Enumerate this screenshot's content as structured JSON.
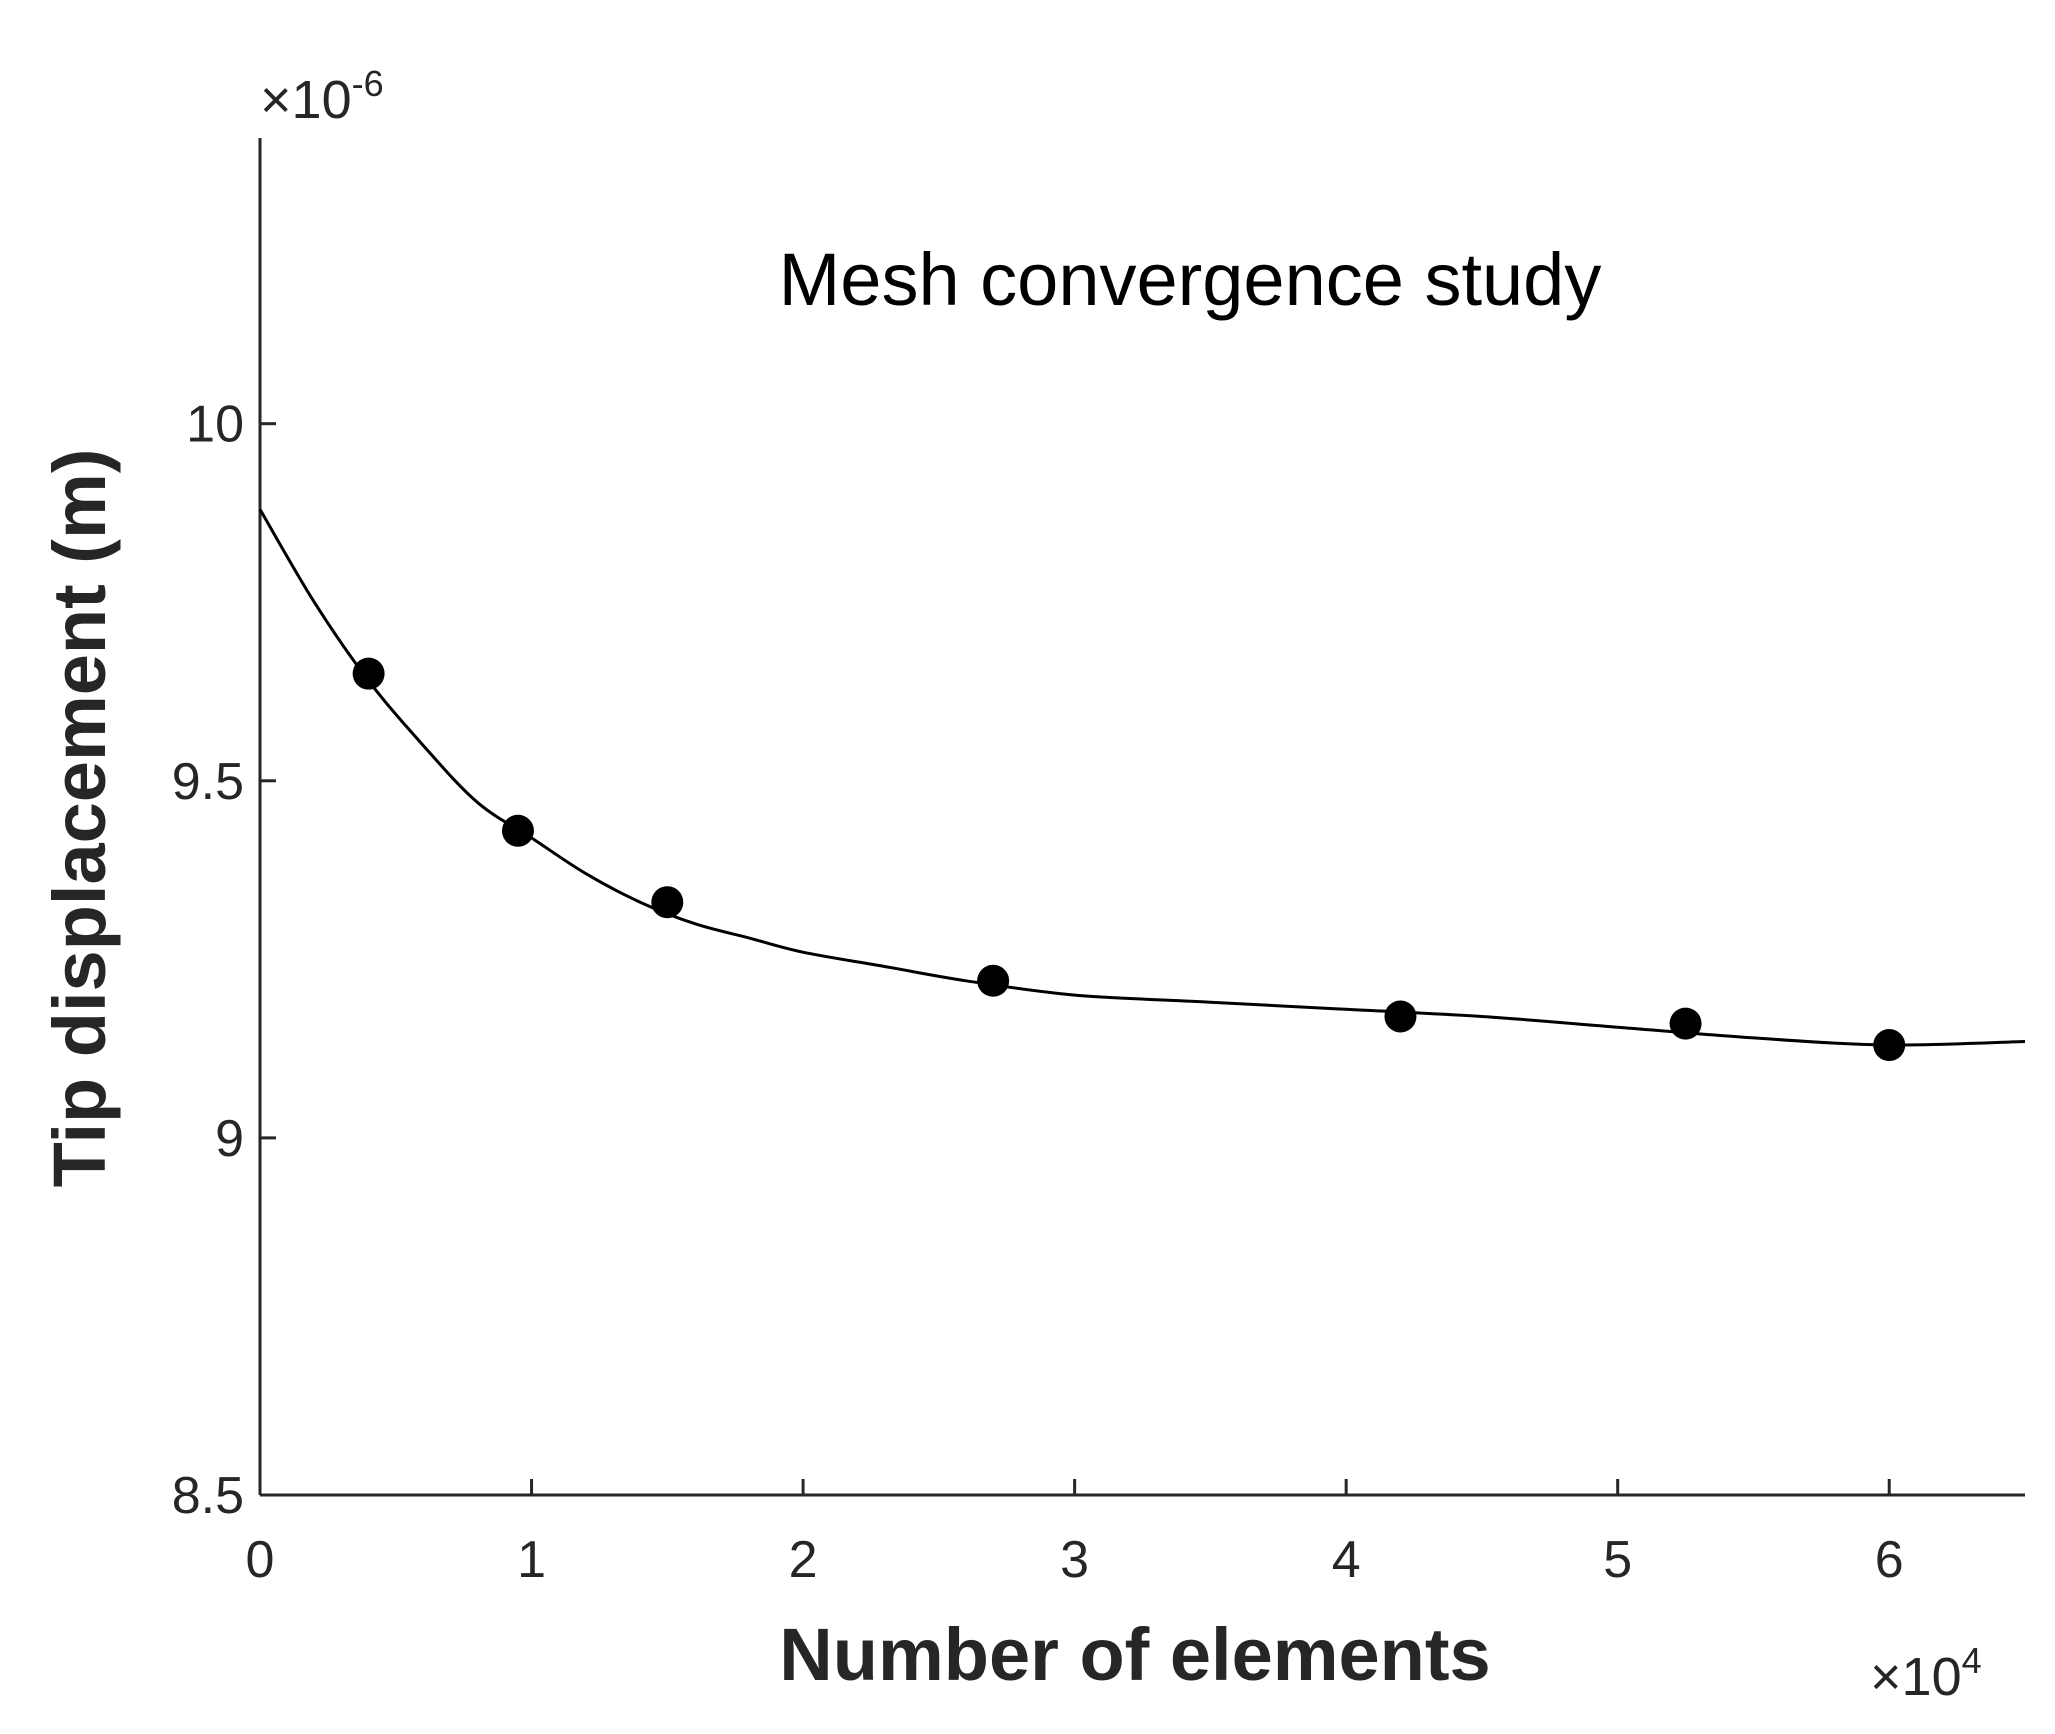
{
  "chart_data": {
    "type": "scatter",
    "title": "",
    "annotation": "Mesh convergence study",
    "xlabel": "Number of elements",
    "ylabel": "Tip displacement (m)",
    "x_multiplier": {
      "base": "×10",
      "exponent": "4"
    },
    "y_multiplier": {
      "base": "×10",
      "exponent": "-6"
    },
    "xlim": [
      0,
      6.5
    ],
    "ylim": [
      8.5,
      10.4
    ],
    "x_ticks": [
      {
        "value": 0,
        "label": "0"
      },
      {
        "value": 1,
        "label": "1"
      },
      {
        "value": 2,
        "label": "2"
      },
      {
        "value": 3,
        "label": "3"
      },
      {
        "value": 4,
        "label": "4"
      },
      {
        "value": 5,
        "label": "5"
      },
      {
        "value": 6,
        "label": "6"
      }
    ],
    "y_ticks": [
      {
        "value": 8.5,
        "label": "8.5"
      },
      {
        "value": 9,
        "label": "9"
      },
      {
        "value": 9.5,
        "label": "9.5"
      },
      {
        "value": 10,
        "label": "10"
      }
    ],
    "grid": false,
    "series": [
      {
        "marker": "filled-circle",
        "color": "#000000",
        "x": [
          0.4,
          0.95,
          1.5,
          2.7,
          4.2,
          5.25,
          6.0
        ],
        "y": [
          9.65,
          9.43,
          9.33,
          9.22,
          9.17,
          9.16,
          9.13
        ]
      }
    ],
    "fit_curve": {
      "color": "#000000",
      "x": [
        0,
        0.2,
        0.4,
        0.6,
        0.8,
        1.0,
        1.2,
        1.4,
        1.6,
        1.8,
        2.0,
        2.3,
        2.6,
        3.0,
        3.5,
        4.0,
        4.5,
        5.0,
        5.5,
        6.0,
        6.5
      ],
      "y": [
        9.88,
        9.75,
        9.64,
        9.55,
        9.47,
        9.42,
        9.37,
        9.33,
        9.3,
        9.28,
        9.26,
        9.24,
        9.22,
        9.2,
        9.19,
        9.18,
        9.17,
        9.155,
        9.14,
        9.13,
        9.135
      ]
    }
  }
}
